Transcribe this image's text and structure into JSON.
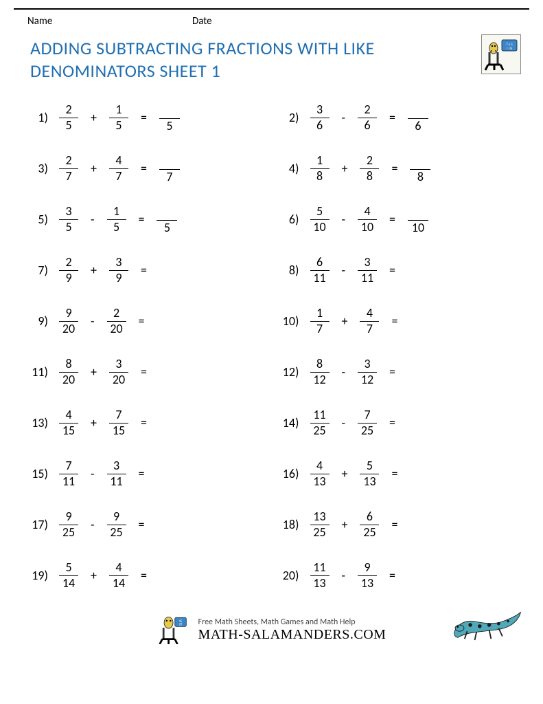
{
  "header": {
    "name_label": "Name",
    "date_label": "Date"
  },
  "title_line1": "ADDING SUBTRACTING FRACTIONS WITH LIKE",
  "title_line2": "DENOMINATORS SHEET 1",
  "title_color": "#1f6fb2",
  "problems": [
    {
      "n": "1)",
      "a_num": "2",
      "a_den": "5",
      "op": "+",
      "b_num": "1",
      "b_den": "5",
      "ans_den": "5"
    },
    {
      "n": "2)",
      "a_num": "3",
      "a_den": "6",
      "op": "-",
      "b_num": "2",
      "b_den": "6",
      "ans_den": "6"
    },
    {
      "n": "3)",
      "a_num": "2",
      "a_den": "7",
      "op": "+",
      "b_num": "4",
      "b_den": "7",
      "ans_den": "7"
    },
    {
      "n": "4)",
      "a_num": "1",
      "a_den": "8",
      "op": "+",
      "b_num": "2",
      "b_den": "8",
      "ans_den": "8"
    },
    {
      "n": "5)",
      "a_num": "3",
      "a_den": "5",
      "op": "-",
      "b_num": "1",
      "b_den": "5",
      "ans_den": "5"
    },
    {
      "n": "6)",
      "a_num": "5",
      "a_den": "10",
      "op": "-",
      "b_num": "4",
      "b_den": "10",
      "ans_den": "10"
    },
    {
      "n": "7)",
      "a_num": "2",
      "a_den": "9",
      "op": "+",
      "b_num": "3",
      "b_den": "9",
      "ans_den": ""
    },
    {
      "n": "8)",
      "a_num": "6",
      "a_den": "11",
      "op": "-",
      "b_num": "3",
      "b_den": "11",
      "ans_den": ""
    },
    {
      "n": "9)",
      "a_num": "9",
      "a_den": "20",
      "op": "-",
      "b_num": "2",
      "b_den": "20",
      "ans_den": ""
    },
    {
      "n": "10)",
      "a_num": "1",
      "a_den": "7",
      "op": "+",
      "b_num": "4",
      "b_den": "7",
      "ans_den": ""
    },
    {
      "n": "11)",
      "a_num": "8",
      "a_den": "20",
      "op": "+",
      "b_num": "3",
      "b_den": "20",
      "ans_den": ""
    },
    {
      "n": "12)",
      "a_num": "8",
      "a_den": "12",
      "op": "-",
      "b_num": "3",
      "b_den": "12",
      "ans_den": ""
    },
    {
      "n": "13)",
      "a_num": "4",
      "a_den": "15",
      "op": "+",
      "b_num": "7",
      "b_den": "15",
      "ans_den": ""
    },
    {
      "n": "14)",
      "a_num": "11",
      "a_den": "25",
      "op": "-",
      "b_num": "7",
      "b_den": "25",
      "ans_den": ""
    },
    {
      "n": "15)",
      "a_num": "7",
      "a_den": "11",
      "op": "-",
      "b_num": "3",
      "b_den": "11",
      "ans_den": ""
    },
    {
      "n": "16)",
      "a_num": "4",
      "a_den": "13",
      "op": "+",
      "b_num": "5",
      "b_den": "13",
      "ans_den": ""
    },
    {
      "n": "17)",
      "a_num": "9",
      "a_den": "25",
      "op": "-",
      "b_num": "9",
      "b_den": "25",
      "ans_den": ""
    },
    {
      "n": "18)",
      "a_num": "13",
      "a_den": "25",
      "op": "+",
      "b_num": "6",
      "b_den": "25",
      "ans_den": ""
    },
    {
      "n": "19)",
      "a_num": "5",
      "a_den": "14",
      "op": "+",
      "b_num": "4",
      "b_den": "14",
      "ans_den": ""
    },
    {
      "n": "20)",
      "a_num": "11",
      "a_den": "13",
      "op": "-",
      "b_num": "9",
      "b_den": "13",
      "ans_den": ""
    }
  ],
  "footer": {
    "tagline": "Free Math Sheets, Math Games and Math Help",
    "brand": "MATH-SALAMANDERS.COM"
  },
  "colors": {
    "text": "#000000",
    "title": "#1f6fb2",
    "background": "#ffffff",
    "salamander_body": "#4fa9b8",
    "salamander_spot": "#1a1a1a",
    "logo_yellow": "#e6c94f",
    "logo_board": "#3d86c6"
  }
}
